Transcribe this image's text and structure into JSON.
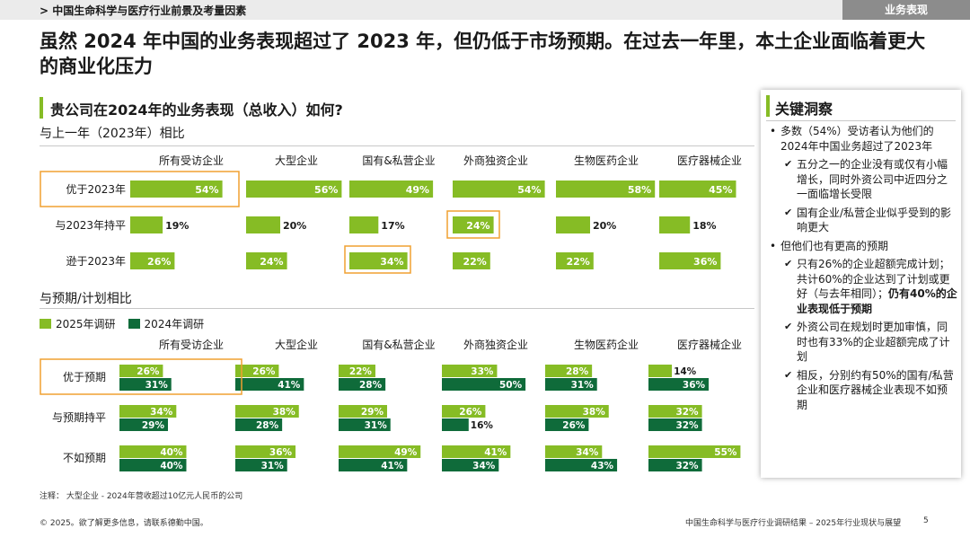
{
  "header": {
    "breadcrumb": "> 中国生命科学与医疗行业前景及考量因素",
    "section_tag": "业务表现"
  },
  "headline": "虽然 2024 年中国的业务表现超过了 2023 年，但仍低于市场预期。在过去一年里，本土企业面临着更大的商业化压力",
  "question": "贵公司在2024年的业务表现（总收入）如何?",
  "colors": {
    "light_green": "#86bc25",
    "dark_green": "#0f6b3a",
    "highlight": "#f0a030"
  },
  "chart_data": [
    {
      "type": "bar",
      "title": "与上一年（2023年）相比",
      "groups": [
        "所有受访企业",
        "大型企业",
        "国有&私营企业",
        "外商独资企业",
        "生物医药企业",
        "医疗器械企业"
      ],
      "rows": [
        {
          "label": "优于2023年",
          "values": [
            54,
            56,
            49,
            54,
            58,
            45
          ]
        },
        {
          "label": "与2023年持平",
          "values": [
            19,
            20,
            17,
            24,
            20,
            18
          ]
        },
        {
          "label": "逊于2023年",
          "values": [
            26,
            24,
            34,
            22,
            22,
            36
          ]
        }
      ],
      "unit": "%",
      "highlighted": [
        "优于2023年 row label",
        "外商独资企业 / 与2023年持平",
        "国有&私营企业 / 逊于2023年"
      ]
    },
    {
      "type": "bar",
      "title": "与预期/计划相比",
      "groups": [
        "所有受访企业",
        "大型企业",
        "国有&私营企业",
        "外商独资企业",
        "生物医药企业",
        "医疗器械企业"
      ],
      "series": [
        {
          "name": "2025年调研",
          "color": "#86bc25"
        },
        {
          "name": "2024年调研",
          "color": "#0f6b3a"
        }
      ],
      "rows": [
        {
          "label": "优于预期",
          "values_2025": [
            26,
            26,
            22,
            33,
            28,
            14
          ],
          "values_2024": [
            31,
            41,
            28,
            50,
            31,
            36
          ]
        },
        {
          "label": "与预期持平",
          "values_2025": [
            34,
            38,
            29,
            26,
            38,
            32
          ],
          "values_2024": [
            29,
            28,
            31,
            16,
            26,
            32
          ]
        },
        {
          "label": "不如预期",
          "values_2025": [
            40,
            36,
            49,
            41,
            34,
            55
          ],
          "values_2024": [
            40,
            31,
            41,
            34,
            43,
            32
          ]
        }
      ],
      "unit": "%",
      "highlighted": [
        "优于预期 row label and 所有受访企业"
      ]
    }
  ],
  "insights": {
    "title": "关键洞察",
    "b1": "多数（54%）受访者认为他们的2024年中国业务超过了2023年",
    "c1": "五分之一的企业没有或仅有小幅增长，同时外资公司中近四分之一面临增长受限",
    "c2": "国有企业/私营企业似乎受到的影响更大",
    "b2": "但他们也有更高的预期",
    "c3a": "只有26%的企业超额完成计划；共计60%的企业达到了计划或更好（与去年相同）；",
    "c3b": "仍有40%的企业表现低于预期",
    "c4": "外资公司在规划时更加审慎，同时也有33%的企业超额完成了计划",
    "c5": "相反，分别约有50%的国有/私营企业和医疗器械企业表现不如预期"
  },
  "note": "注释：  大型企业 - 2024年营收超过10亿元人民币的公司",
  "footer": {
    "left": "© 2025。欲了解更多信息，请联系德勤中国。",
    "right": "中国生命科学与医疗行业调研结果 – 2025年行业现状与展望",
    "page": "5"
  }
}
